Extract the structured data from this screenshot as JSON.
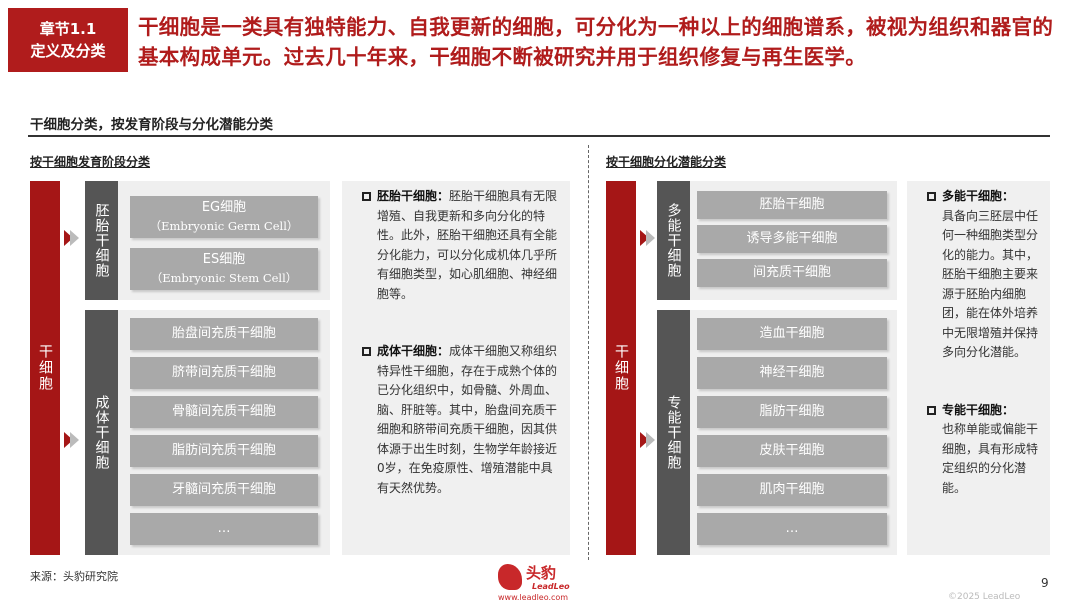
{
  "header": {
    "chapter": "章节1.1",
    "chapter_sub": "定义及分类",
    "headline": "干细胞是一类具有独特能力、自我更新的细胞，可分化为一种以上的细胞谱系，被视为组织和器官的基本构成单元。过去几十年来，干细胞不断被研究并用于组织修复与再生医学。"
  },
  "section_title": "干细胞分类，按发育阶段与分化潜能分类",
  "left": {
    "subtitle": "按干细胞发育阶段分类",
    "root": "干细胞",
    "groups": [
      {
        "label": "胚胎干细胞",
        "items": [
          {
            "name": "EG细胞",
            "en": "（Embryonic Germ Cell）"
          },
          {
            "name": "ES细胞",
            "en": "（Embryonic Stem Cell）"
          }
        ]
      },
      {
        "label": "成体干细胞",
        "items": [
          "胎盘间充质干细胞",
          "脐带间充质干细胞",
          "骨髓间充质干细胞",
          "脂肪间充质干细胞",
          "牙髓间充质干细胞",
          "…"
        ]
      }
    ],
    "notes": [
      {
        "title": "胚胎干细胞：",
        "text": "胚胎干细胞具有无限增殖、自我更新和多向分化的特性。此外，胚胎干细胞还具有全能分化能力，可以分化成机体几乎所有细胞类型，如心肌细胞、神经细胞等。"
      },
      {
        "title": "成体干细胞：",
        "text": "成体干细胞又称组织特异性干细胞，存在于成熟个体的已分化组织中，如骨髓、外周血、脑、肝脏等。其中，胎盘间充质干细胞和脐带间充质干细胞，因其供体源于出生时刻，生物学年龄接近0岁，在免疫原性、增殖潜能中具有天然优势。"
      }
    ]
  },
  "right": {
    "subtitle": "按干细胞分化潜能分类",
    "root": "干细胞",
    "groups": [
      {
        "label": "多能干细胞",
        "items": [
          "胚胎干细胞",
          "诱导多能干细胞",
          "间充质干细胞"
        ]
      },
      {
        "label": "专能干细胞",
        "items": [
          "造血干细胞",
          "神经干细胞",
          "脂肪干细胞",
          "皮肤干细胞",
          "肌肉干细胞",
          "…"
        ]
      }
    ],
    "notes": [
      {
        "title": "多能干细胞：",
        "text": "具备向三胚层中任何一种细胞类型分化的能力。其中，胚胎干细胞主要来源于胚胎内细胞团，能在体外培养中无限增殖并保持多向分化潜能。"
      },
      {
        "title": "专能干细胞：",
        "text": "也称单能或偏能干细胞，具有形成特定组织的分化潜能。"
      }
    ]
  },
  "footer": {
    "source": "来源：头豹研究院",
    "logo_cn": "头豹",
    "logo_en": "LeadLeo",
    "logo_url": "www.leadleo.com",
    "page": "9",
    "copyright": "©2025 LeadLeo"
  },
  "colors": {
    "accent": "#b01c1c",
    "dark": "#555555",
    "box": "#a9a9a9"
  }
}
